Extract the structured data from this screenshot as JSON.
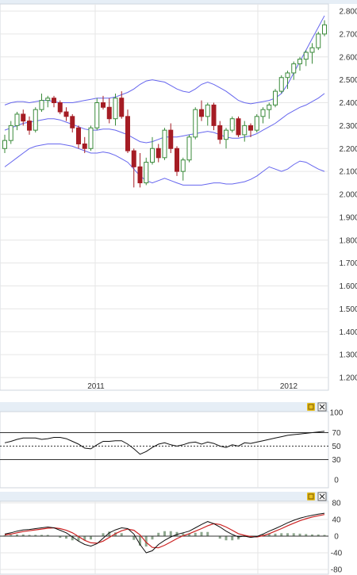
{
  "colors": {
    "up": "#3a8a3a",
    "down": "#a51c24",
    "band": "#6666ee",
    "grid": "#e6e6e6",
    "indicator": "#111111",
    "signal": "#cc2222",
    "histogram": "#8fa88f",
    "panel_bar": "#e6eef6",
    "button": "#e8c020"
  },
  "chart_data": [
    {
      "type": "candlestick",
      "x_labels": [
        "2011",
        "2012"
      ],
      "y_ticks": [
        "2.800",
        "2.700",
        "2.600",
        "2.500",
        "2.400",
        "2.300",
        "2.200",
        "2.100",
        "2.000",
        "1.900",
        "1.800",
        "1.700",
        "1.600",
        "1.500",
        "1.400",
        "1.300",
        "1.200"
      ],
      "ylim": [
        1200,
        2800
      ],
      "candles": [
        [
          2200,
          2260,
          2180,
          2235
        ],
        [
          2235,
          2320,
          2220,
          2300
        ],
        [
          2300,
          2360,
          2280,
          2350
        ],
        [
          2350,
          2370,
          2300,
          2320
        ],
        [
          2320,
          2340,
          2260,
          2280
        ],
        [
          2280,
          2380,
          2270,
          2370
        ],
        [
          2370,
          2440,
          2360,
          2410
        ],
        [
          2410,
          2430,
          2380,
          2420
        ],
        [
          2420,
          2430,
          2380,
          2400
        ],
        [
          2400,
          2410,
          2350,
          2360
        ],
        [
          2360,
          2380,
          2320,
          2340
        ],
        [
          2340,
          2350,
          2270,
          2290
        ],
        [
          2290,
          2300,
          2200,
          2220
        ],
        [
          2220,
          2250,
          2180,
          2200
        ],
        [
          2200,
          2300,
          2190,
          2290
        ],
        [
          2290,
          2420,
          2280,
          2400
        ],
        [
          2400,
          2430,
          2370,
          2380
        ],
        [
          2380,
          2420,
          2310,
          2330
        ],
        [
          2330,
          2440,
          2300,
          2420
        ],
        [
          2420,
          2450,
          2330,
          2340
        ],
        [
          2340,
          2370,
          2180,
          2190
        ],
        [
          2190,
          2200,
          2030,
          2120
        ],
        [
          2120,
          2180,
          2030,
          2050
        ],
        [
          2050,
          2160,
          2040,
          2140
        ],
        [
          2140,
          2250,
          2130,
          2200
        ],
        [
          2200,
          2220,
          2140,
          2160
        ],
        [
          2160,
          2290,
          2150,
          2280
        ],
        [
          2280,
          2310,
          2180,
          2200
        ],
        [
          2200,
          2210,
          2080,
          2100
        ],
        [
          2100,
          2160,
          2060,
          2150
        ],
        [
          2150,
          2260,
          2140,
          2250
        ],
        [
          2250,
          2380,
          2240,
          2370
        ],
        [
          2370,
          2410,
          2320,
          2340
        ],
        [
          2340,
          2400,
          2300,
          2390
        ],
        [
          2390,
          2400,
          2280,
          2300
        ],
        [
          2300,
          2320,
          2220,
          2240
        ],
        [
          2240,
          2290,
          2200,
          2280
        ],
        [
          2280,
          2340,
          2270,
          2330
        ],
        [
          2330,
          2340,
          2250,
          2260
        ],
        [
          2260,
          2320,
          2230,
          2300
        ],
        [
          2300,
          2310,
          2250,
          2280
        ],
        [
          2280,
          2350,
          2270,
          2340
        ],
        [
          2340,
          2380,
          2310,
          2370
        ],
        [
          2370,
          2400,
          2330,
          2390
        ],
        [
          2390,
          2460,
          2380,
          2450
        ],
        [
          2450,
          2520,
          2440,
          2510
        ],
        [
          2510,
          2540,
          2460,
          2530
        ],
        [
          2530,
          2580,
          2500,
          2570
        ],
        [
          2570,
          2600,
          2540,
          2590
        ],
        [
          2590,
          2630,
          2560,
          2620
        ],
        [
          2620,
          2660,
          2570,
          2640
        ],
        [
          2640,
          2710,
          2630,
          2700
        ],
        [
          2700,
          2760,
          2690,
          2740
        ]
      ],
      "upper_band": [
        2390,
        2400,
        2405,
        2405,
        2400,
        2405,
        2410,
        2410,
        2405,
        2400,
        2400,
        2400,
        2405,
        2410,
        2415,
        2420,
        2420,
        2420,
        2425,
        2435,
        2445,
        2460,
        2480,
        2495,
        2500,
        2495,
        2490,
        2475,
        2460,
        2450,
        2445,
        2460,
        2480,
        2490,
        2480,
        2465,
        2450,
        2430,
        2410,
        2400,
        2395,
        2400,
        2405,
        2410,
        2420,
        2440,
        2480,
        2530,
        2580,
        2630,
        2680,
        2730,
        2780
      ],
      "middle_band": [
        2280,
        2290,
        2300,
        2310,
        2315,
        2320,
        2325,
        2330,
        2330,
        2325,
        2315,
        2305,
        2295,
        2285,
        2280,
        2280,
        2285,
        2285,
        2280,
        2270,
        2260,
        2245,
        2230,
        2225,
        2230,
        2240,
        2250,
        2250,
        2250,
        2255,
        2260,
        2265,
        2270,
        2275,
        2270,
        2260,
        2250,
        2245,
        2245,
        2250,
        2255,
        2265,
        2280,
        2295,
        2310,
        2330,
        2350,
        2365,
        2380,
        2390,
        2405,
        2420,
        2440
      ],
      "lower_band": [
        2120,
        2140,
        2160,
        2180,
        2200,
        2210,
        2215,
        2220,
        2220,
        2220,
        2215,
        2210,
        2200,
        2190,
        2180,
        2180,
        2185,
        2180,
        2170,
        2155,
        2140,
        2110,
        2080,
        2060,
        2050,
        2060,
        2070,
        2060,
        2050,
        2040,
        2040,
        2040,
        2040,
        2045,
        2050,
        2050,
        2045,
        2045,
        2050,
        2055,
        2065,
        2080,
        2100,
        2120,
        2110,
        2100,
        2110,
        2130,
        2145,
        2140,
        2125,
        2110,
        2100
      ]
    },
    {
      "type": "line",
      "y_ticks": [
        "100",
        "70",
        "50",
        "30",
        "0"
      ],
      "ylim": [
        0,
        100
      ],
      "reference_lines": [
        70,
        50,
        30
      ],
      "values": [
        55,
        57,
        60,
        62,
        62,
        62,
        60,
        61,
        63,
        63,
        61,
        57,
        53,
        47,
        46,
        52,
        57,
        57,
        58,
        58,
        53,
        46,
        38,
        42,
        48,
        53,
        55,
        52,
        50,
        52,
        55,
        56,
        53,
        56,
        54,
        50,
        48,
        52,
        50,
        55,
        54,
        56,
        58,
        60,
        62,
        64,
        66,
        67,
        68,
        69,
        70,
        71,
        72
      ]
    },
    {
      "type": "line",
      "y_ticks": [
        "80",
        "40",
        "0",
        "-40",
        "-80"
      ],
      "ylim": [
        -80,
        80
      ],
      "line": [
        5,
        8,
        12,
        15,
        16,
        18,
        20,
        22,
        20,
        14,
        8,
        -2,
        -12,
        -20,
        -24,
        -18,
        -5,
        8,
        15,
        20,
        18,
        5,
        -20,
        -40,
        -35,
        -20,
        -10,
        -2,
        4,
        8,
        12,
        20,
        28,
        35,
        30,
        22,
        12,
        4,
        -2,
        0,
        -3,
        -1,
        5,
        12,
        18,
        25,
        32,
        38,
        43,
        47,
        50,
        53,
        55
      ],
      "signal": [
        3,
        5,
        8,
        11,
        13,
        15,
        17,
        19,
        20,
        18,
        14,
        8,
        -1,
        -10,
        -16,
        -17,
        -12,
        -3,
        6,
        13,
        17,
        14,
        3,
        -15,
        -27,
        -28,
        -22,
        -14,
        -6,
        1,
        6,
        12,
        18,
        25,
        30,
        28,
        22,
        14,
        6,
        2,
        -1,
        -2,
        1,
        6,
        12,
        18,
        25,
        31,
        37,
        42,
        46,
        49,
        52
      ]
    }
  ]
}
